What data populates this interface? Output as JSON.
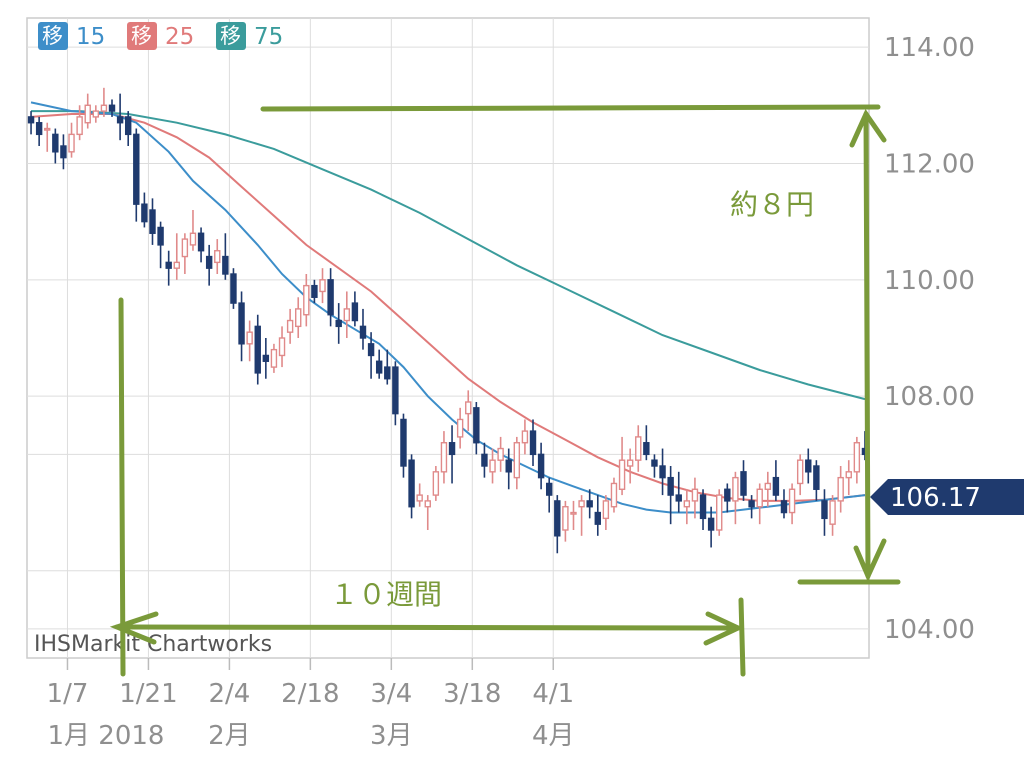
{
  "chart_data": {
    "type": "candlestick",
    "legend": [
      {
        "box": "移",
        "value": "15",
        "color": "#3d8ec9"
      },
      {
        "box": "移",
        "value": "25",
        "color": "#e07a7a"
      },
      {
        "box": "移",
        "value": "75",
        "color": "#3b9c9c"
      }
    ],
    "y_ticks": [
      "114.00",
      "112.00",
      "110.00",
      "108.00",
      "104.00"
    ],
    "ylim": [
      103.5,
      114.5
    ],
    "x_ticks": [
      {
        "label": "1/7",
        "day": 7
      },
      {
        "label": "1/21",
        "day": 21
      },
      {
        "label": "2/4",
        "day": 35
      },
      {
        "label": "2/18",
        "day": 49
      },
      {
        "label": "3/4",
        "day": 63
      },
      {
        "label": "3/18",
        "day": 77
      },
      {
        "label": "4/1",
        "day": 91
      }
    ],
    "month_labels": [
      "1月 2018",
      "2月",
      "3月",
      "4月"
    ],
    "last_price": "106.17",
    "credit": "IHSMarkit Chartworks",
    "annotations": {
      "range_label": "約８円",
      "period_label": "１０週間"
    },
    "colors": {
      "up": "#e08a8a",
      "down": "#1f3a6e",
      "annotation": "#7a9a3a",
      "grid": "#dddddd"
    },
    "candles": [
      [
        112.8,
        112.9,
        112.5,
        112.7
      ],
      [
        112.7,
        112.8,
        112.3,
        112.5
      ],
      [
        112.6,
        112.7,
        112.2,
        112.6
      ],
      [
        112.5,
        112.6,
        112.0,
        112.2
      ],
      [
        112.3,
        112.5,
        111.9,
        112.1
      ],
      [
        112.2,
        112.7,
        112.1,
        112.5
      ],
      [
        112.5,
        113.0,
        112.4,
        112.8
      ],
      [
        112.7,
        113.2,
        112.6,
        113.0
      ],
      [
        112.8,
        113.0,
        112.7,
        112.9
      ],
      [
        112.9,
        113.3,
        112.8,
        113.0
      ],
      [
        113.0,
        113.1,
        112.8,
        112.9
      ],
      [
        112.8,
        113.2,
        112.4,
        112.7
      ],
      [
        112.8,
        112.9,
        112.3,
        112.5
      ],
      [
        112.5,
        112.6,
        111.0,
        111.3
      ],
      [
        111.3,
        111.5,
        110.9,
        111.0
      ],
      [
        111.2,
        111.4,
        110.6,
        110.8
      ],
      [
        110.9,
        111.0,
        110.2,
        110.6
      ],
      [
        110.3,
        110.5,
        109.9,
        110.2
      ],
      [
        110.2,
        110.8,
        110.0,
        110.3
      ],
      [
        110.4,
        110.8,
        110.1,
        110.7
      ],
      [
        110.6,
        111.2,
        110.5,
        110.8
      ],
      [
        110.8,
        110.9,
        110.3,
        110.5
      ],
      [
        110.4,
        110.6,
        109.9,
        110.2
      ],
      [
        110.3,
        110.7,
        110.1,
        110.5
      ],
      [
        110.4,
        110.8,
        110.0,
        110.1
      ],
      [
        110.1,
        110.2,
        109.5,
        109.6
      ],
      [
        109.6,
        109.8,
        108.6,
        108.9
      ],
      [
        108.9,
        109.3,
        108.6,
        109.1
      ],
      [
        109.2,
        109.4,
        108.2,
        108.4
      ],
      [
        108.7,
        109.0,
        108.3,
        108.6
      ],
      [
        108.5,
        108.9,
        108.4,
        108.8
      ],
      [
        108.7,
        109.2,
        108.5,
        109.0
      ],
      [
        109.1,
        109.5,
        108.9,
        109.3
      ],
      [
        109.2,
        109.7,
        109.0,
        109.5
      ],
      [
        109.4,
        110.1,
        109.2,
        109.9
      ],
      [
        109.9,
        110.0,
        109.6,
        109.7
      ],
      [
        109.8,
        110.2,
        109.6,
        110.0
      ],
      [
        110.0,
        110.2,
        109.2,
        109.4
      ],
      [
        109.3,
        109.6,
        108.9,
        109.2
      ],
      [
        109.3,
        109.8,
        109.0,
        109.5
      ],
      [
        109.6,
        109.8,
        109.2,
        109.3
      ],
      [
        109.2,
        109.5,
        108.8,
        109.0
      ],
      [
        108.9,
        109.1,
        108.3,
        108.7
      ],
      [
        108.6,
        108.8,
        108.3,
        108.4
      ],
      [
        108.5,
        108.8,
        108.2,
        108.3
      ],
      [
        108.5,
        108.6,
        107.5,
        107.7
      ],
      [
        107.6,
        107.7,
        106.6,
        106.8
      ],
      [
        106.9,
        107.0,
        105.9,
        106.1
      ],
      [
        106.2,
        106.5,
        106.1,
        106.3
      ],
      [
        106.1,
        106.3,
        105.7,
        106.2
      ],
      [
        106.3,
        106.8,
        106.2,
        106.7
      ],
      [
        106.7,
        107.4,
        106.5,
        107.2
      ],
      [
        107.2,
        107.5,
        106.5,
        107.0
      ],
      [
        107.3,
        107.8,
        107.1,
        107.6
      ],
      [
        107.7,
        108.1,
        107.4,
        107.9
      ],
      [
        107.8,
        107.9,
        107.0,
        107.2
      ],
      [
        107.0,
        107.2,
        106.6,
        106.8
      ],
      [
        106.7,
        107.1,
        106.5,
        106.9
      ],
      [
        106.9,
        107.3,
        106.7,
        107.1
      ],
      [
        106.9,
        107.1,
        106.4,
        106.7
      ],
      [
        106.6,
        107.3,
        106.4,
        107.2
      ],
      [
        107.2,
        107.6,
        107.0,
        107.4
      ],
      [
        107.4,
        107.6,
        106.8,
        107.0
      ],
      [
        107.0,
        107.2,
        106.4,
        106.6
      ],
      [
        106.5,
        106.6,
        106.0,
        106.3
      ],
      [
        106.2,
        106.3,
        105.3,
        105.6
      ],
      [
        105.7,
        106.2,
        105.5,
        106.1
      ],
      [
        106.0,
        106.2,
        105.7,
        106.0
      ],
      [
        106.1,
        106.3,
        105.6,
        106.2
      ],
      [
        106.2,
        106.4,
        105.9,
        106.1
      ],
      [
        106.0,
        106.3,
        105.6,
        105.8
      ],
      [
        105.9,
        106.3,
        105.7,
        106.2
      ],
      [
        106.1,
        106.6,
        106.0,
        106.5
      ],
      [
        106.4,
        107.3,
        106.3,
        106.9
      ],
      [
        106.8,
        107.1,
        106.5,
        106.9
      ],
      [
        106.9,
        107.5,
        106.7,
        107.3
      ],
      [
        107.2,
        107.5,
        106.9,
        107.0
      ],
      [
        106.9,
        107.0,
        106.6,
        106.8
      ],
      [
        106.8,
        107.1,
        106.3,
        106.6
      ],
      [
        106.6,
        106.8,
        105.8,
        106.3
      ],
      [
        106.3,
        106.7,
        106.0,
        106.2
      ],
      [
        106.1,
        106.4,
        105.8,
        106.2
      ],
      [
        106.2,
        106.6,
        105.9,
        106.4
      ],
      [
        106.3,
        106.4,
        105.7,
        105.9
      ],
      [
        105.9,
        106.1,
        105.4,
        105.7
      ],
      [
        105.7,
        106.4,
        105.6,
        106.3
      ],
      [
        106.4,
        106.5,
        106.0,
        106.2
      ],
      [
        106.2,
        106.7,
        105.8,
        106.6
      ],
      [
        106.7,
        106.9,
        106.2,
        106.3
      ],
      [
        106.2,
        106.3,
        105.9,
        106.1
      ],
      [
        106.1,
        106.5,
        105.8,
        106.4
      ],
      [
        106.4,
        106.7,
        106.1,
        106.5
      ],
      [
        106.6,
        106.9,
        106.2,
        106.3
      ],
      [
        106.2,
        106.4,
        105.9,
        106.0
      ],
      [
        106.0,
        106.5,
        105.8,
        106.4
      ],
      [
        106.5,
        107.0,
        106.3,
        106.9
      ],
      [
        106.9,
        107.1,
        106.5,
        106.7
      ],
      [
        106.8,
        106.9,
        106.2,
        106.4
      ],
      [
        106.2,
        106.4,
        105.6,
        105.9
      ],
      [
        105.8,
        106.3,
        105.6,
        106.2
      ],
      [
        106.2,
        106.8,
        106.0,
        106.6
      ],
      [
        106.6,
        106.9,
        106.3,
        106.7
      ],
      [
        106.7,
        107.3,
        106.5,
        107.2
      ],
      [
        107.1,
        107.4,
        106.9,
        107.0
      ]
    ],
    "ma15": [
      [
        0,
        113.05
      ],
      [
        5,
        112.9
      ],
      [
        10,
        112.85
      ],
      [
        13,
        112.7
      ],
      [
        17,
        112.2
      ],
      [
        20,
        111.7
      ],
      [
        24,
        111.2
      ],
      [
        28,
        110.6
      ],
      [
        31,
        110.1
      ],
      [
        34,
        109.7
      ],
      [
        37,
        109.4
      ],
      [
        40,
        109.15
      ],
      [
        43,
        108.9
      ],
      [
        46,
        108.5
      ],
      [
        49,
        108.0
      ],
      [
        52,
        107.6
      ],
      [
        55,
        107.25
      ],
      [
        58,
        107.0
      ],
      [
        61,
        106.8
      ],
      [
        64,
        106.6
      ],
      [
        67,
        106.45
      ],
      [
        70,
        106.3
      ],
      [
        73,
        106.15
      ],
      [
        76,
        106.05
      ],
      [
        79,
        106.0
      ],
      [
        82,
        106.0
      ],
      [
        85,
        106.0
      ],
      [
        88,
        106.05
      ],
      [
        91,
        106.1
      ],
      [
        94,
        106.15
      ],
      [
        97,
        106.2
      ],
      [
        100,
        106.25
      ],
      [
        103,
        106.3
      ]
    ],
    "ma25": [
      [
        0,
        112.8
      ],
      [
        5,
        112.85
      ],
      [
        10,
        112.85
      ],
      [
        14,
        112.7
      ],
      [
        18,
        112.45
      ],
      [
        22,
        112.1
      ],
      [
        26,
        111.6
      ],
      [
        30,
        111.1
      ],
      [
        34,
        110.6
      ],
      [
        38,
        110.2
      ],
      [
        42,
        109.8
      ],
      [
        46,
        109.3
      ],
      [
        50,
        108.8
      ],
      [
        54,
        108.3
      ],
      [
        58,
        107.9
      ],
      [
        62,
        107.55
      ],
      [
        66,
        107.25
      ],
      [
        70,
        106.95
      ],
      [
        74,
        106.7
      ],
      [
        78,
        106.5
      ],
      [
        82,
        106.35
      ],
      [
        86,
        106.25
      ],
      [
        90,
        106.2
      ],
      [
        94,
        106.2
      ],
      [
        98,
        106.22
      ],
      [
        103,
        106.3
      ]
    ],
    "ma75": [
      [
        0,
        112.9
      ],
      [
        6,
        112.9
      ],
      [
        12,
        112.85
      ],
      [
        18,
        112.7
      ],
      [
        24,
        112.5
      ],
      [
        30,
        112.25
      ],
      [
        36,
        111.9
      ],
      [
        42,
        111.55
      ],
      [
        48,
        111.15
      ],
      [
        54,
        110.7
      ],
      [
        60,
        110.25
      ],
      [
        66,
        109.85
      ],
      [
        72,
        109.45
      ],
      [
        78,
        109.05
      ],
      [
        84,
        108.75
      ],
      [
        90,
        108.45
      ],
      [
        96,
        108.2
      ],
      [
        103,
        107.95
      ]
    ]
  }
}
